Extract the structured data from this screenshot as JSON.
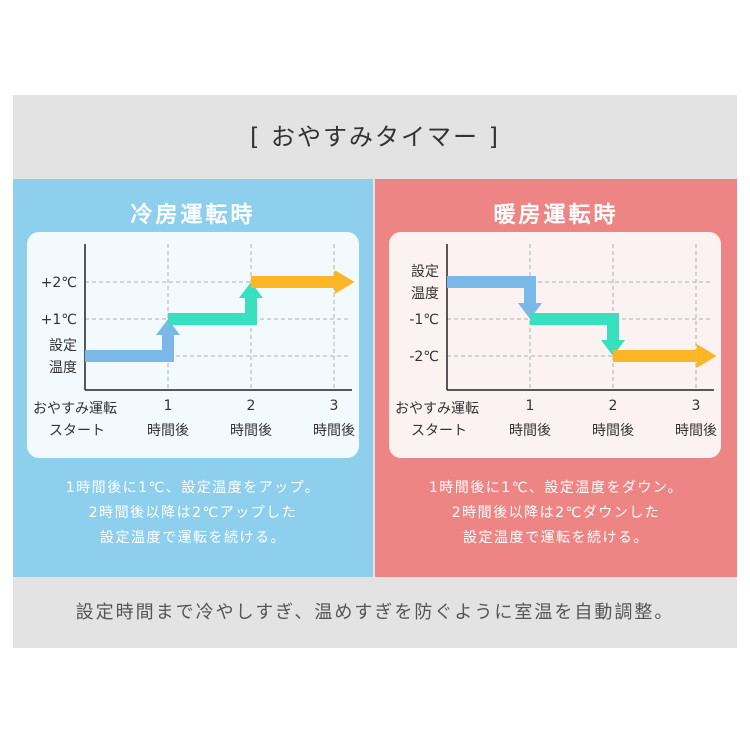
{
  "header": {
    "title": "[ おやすみタイマー ]"
  },
  "panels": {
    "cooling": {
      "title": "冷房運転時",
      "description": [
        "1時間後に1℃、設定温度をアップ。",
        "2時間後以降は2℃アップした",
        "設定温度で運転を続ける。"
      ]
    },
    "heating": {
      "title": "暖房運転時",
      "description": [
        "1時間後に1℃、設定温度をダウン。",
        "2時間後以降は2℃ダウンした",
        "設定温度で運転を続ける。"
      ]
    }
  },
  "footer": {
    "text": "設定時間まで冷やしすぎ、温めすぎを防ぐように室温を自動調整。"
  },
  "colors": {
    "cooling_bg": "#8ecfee",
    "heating_bg": "#ee8585",
    "arrow_blue": "#7ab8e8",
    "arrow_green": "#38e0c0",
    "arrow_orange": "#fbb626"
  },
  "chart_data": [
    {
      "type": "line",
      "title": "冷房運転時",
      "x_start_label": [
        "おやすみ運転",
        "スタート"
      ],
      "x": [
        {
          "num": "1",
          "label": "時間後"
        },
        {
          "num": "2",
          "label": "時間後"
        },
        {
          "num": "3",
          "label": "時間後"
        }
      ],
      "y_labels": [
        {
          "value": 2,
          "lines": [
            "+2℃"
          ]
        },
        {
          "value": 1,
          "lines": [
            "+1℃"
          ]
        },
        {
          "value": 0,
          "lines": [
            "設定",
            "温度"
          ]
        }
      ],
      "steps": [
        {
          "from": 0,
          "to": 1,
          "value": 0,
          "color": "#7ab8e8"
        },
        {
          "from": 1,
          "to": 2,
          "value": 1,
          "color": "#38e0c0"
        },
        {
          "from": 2,
          "to": 3.2,
          "value": 2,
          "color": "#fbb626"
        }
      ],
      "ylim": [
        0,
        2
      ]
    },
    {
      "type": "line",
      "title": "暖房運転時",
      "x_start_label": [
        "おやすみ運転",
        "スタート"
      ],
      "x": [
        {
          "num": "1",
          "label": "時間後"
        },
        {
          "num": "2",
          "label": "時間後"
        },
        {
          "num": "3",
          "label": "時間後"
        }
      ],
      "y_labels": [
        {
          "value": 0,
          "lines": [
            "設定",
            "温度"
          ]
        },
        {
          "value": -1,
          "lines": [
            "-1℃"
          ]
        },
        {
          "value": -2,
          "lines": [
            "-2℃"
          ]
        }
      ],
      "steps": [
        {
          "from": 0,
          "to": 1,
          "value": 0,
          "color": "#7ab8e8"
        },
        {
          "from": 1,
          "to": 2,
          "value": -1,
          "color": "#38e0c0"
        },
        {
          "from": 2,
          "to": 3.2,
          "value": -2,
          "color": "#fbb626"
        }
      ],
      "ylim": [
        -2,
        0
      ]
    }
  ]
}
